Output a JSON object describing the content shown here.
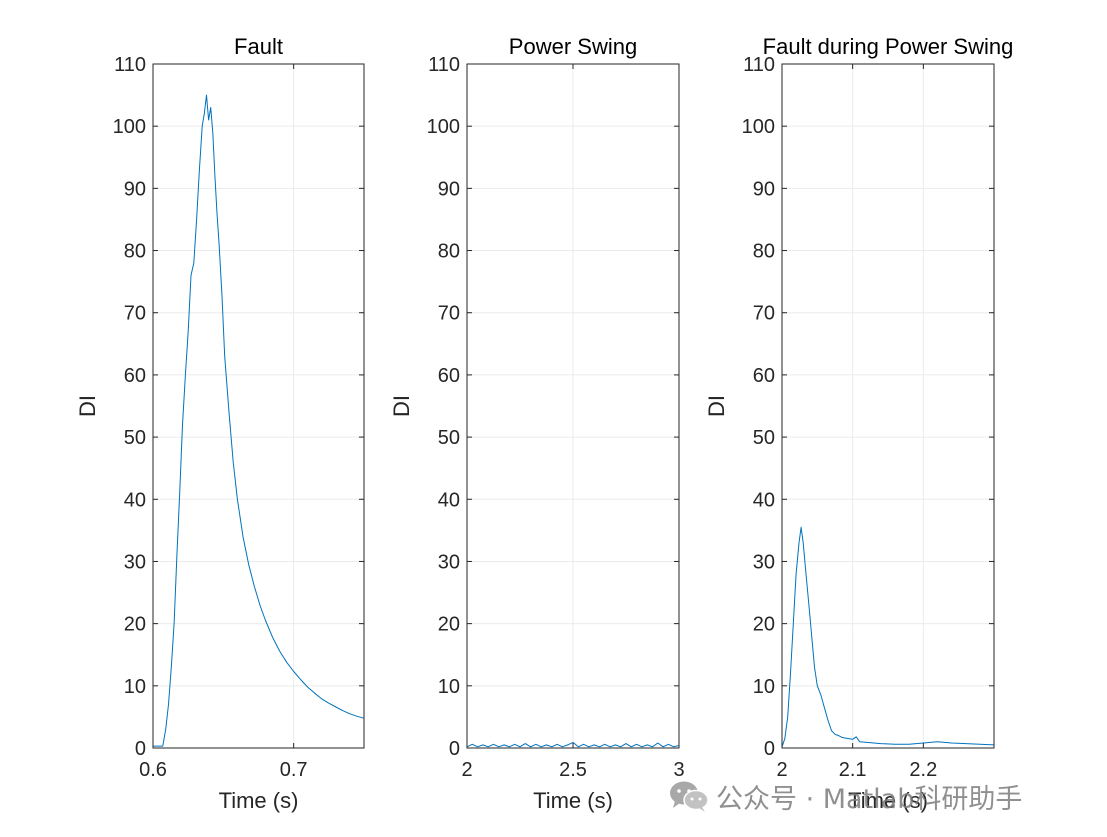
{
  "chart_data": [
    {
      "type": "line",
      "title": "Fault",
      "xlabel": "Time (s)",
      "ylabel": "DI",
      "xlim": [
        0.6,
        0.75
      ],
      "ylim": [
        0,
        110
      ],
      "xticks": [
        0.6,
        0.7
      ],
      "xticklabels": [
        "0.6",
        "0.7"
      ],
      "yticks": [
        0,
        10,
        20,
        30,
        40,
        50,
        60,
        70,
        80,
        90,
        100,
        110
      ],
      "yticklabels": [
        "0",
        "10",
        "20",
        "30",
        "40",
        "50",
        "60",
        "70",
        "80",
        "90",
        "100",
        "110"
      ],
      "grid": true,
      "line_color": "#0072BD",
      "series": [
        {
          "x": [
            0.6,
            0.607,
            0.609,
            0.611,
            0.613,
            0.615,
            0.617,
            0.619,
            0.621,
            0.623,
            0.625,
            0.627,
            0.629,
            0.631,
            0.633,
            0.635,
            0.6365,
            0.638,
            0.6395,
            0.641,
            0.6425,
            0.644,
            0.6455,
            0.647,
            0.649,
            0.651,
            0.654,
            0.657,
            0.66,
            0.664,
            0.668,
            0.672,
            0.676,
            0.68,
            0.685,
            0.69,
            0.695,
            0.7,
            0.705,
            0.71,
            0.715,
            0.72,
            0.725,
            0.73,
            0.735,
            0.74,
            0.745,
            0.75
          ],
          "y": [
            0.3,
            0.3,
            3,
            7,
            13,
            20,
            31,
            41,
            52,
            60,
            67,
            76,
            78,
            85,
            93,
            100,
            102,
            105,
            101,
            103,
            99,
            92,
            86,
            81,
            73,
            63,
            54,
            46,
            40,
            34,
            29.5,
            26,
            23,
            20.5,
            17.8,
            15.6,
            13.8,
            12.3,
            11,
            9.8,
            8.8,
            7.9,
            7.2,
            6.6,
            6,
            5.5,
            5.1,
            4.8
          ]
        }
      ]
    },
    {
      "type": "line",
      "title": "Power Swing",
      "xlabel": "Time (s)",
      "ylabel": "DI",
      "xlim": [
        2,
        3
      ],
      "ylim": [
        0,
        110
      ],
      "xticks": [
        2,
        2.5,
        3
      ],
      "xticklabels": [
        "2",
        "2.5",
        "3"
      ],
      "yticks": [
        0,
        10,
        20,
        30,
        40,
        50,
        60,
        70,
        80,
        90,
        100,
        110
      ],
      "yticklabels": [
        "0",
        "10",
        "20",
        "30",
        "40",
        "50",
        "60",
        "70",
        "80",
        "90",
        "100",
        "110"
      ],
      "grid": true,
      "line_color": "#0072BD",
      "series": [
        {
          "x": [
            2.0,
            2.025,
            2.05,
            2.075,
            2.1,
            2.125,
            2.15,
            2.175,
            2.2,
            2.225,
            2.25,
            2.275,
            2.3,
            2.325,
            2.35,
            2.375,
            2.4,
            2.425,
            2.45,
            2.475,
            2.5,
            2.525,
            2.55,
            2.575,
            2.6,
            2.625,
            2.65,
            2.675,
            2.7,
            2.725,
            2.75,
            2.775,
            2.8,
            2.825,
            2.85,
            2.875,
            2.9,
            2.925,
            2.95,
            2.975,
            3.0
          ],
          "y": [
            0.2,
            0.6,
            0.2,
            0.5,
            0.2,
            0.6,
            0.2,
            0.5,
            0.2,
            0.6,
            0.2,
            0.7,
            0.2,
            0.6,
            0.2,
            0.5,
            0.2,
            0.6,
            0.2,
            0.5,
            0.9,
            0.2,
            0.6,
            0.2,
            0.5,
            0.2,
            0.6,
            0.2,
            0.5,
            0.2,
            0.7,
            0.2,
            0.6,
            0.2,
            0.5,
            0.2,
            0.8,
            0.2,
            0.6,
            0.2,
            0.4
          ]
        }
      ]
    },
    {
      "type": "line",
      "title": "Fault during Power Swing",
      "xlabel": "Time (s)",
      "ylabel": "DI",
      "xlim": [
        2,
        2.3
      ],
      "ylim": [
        0,
        110
      ],
      "xticks": [
        2,
        2.1,
        2.2
      ],
      "xticklabels": [
        "2",
        "2.1",
        "2.2"
      ],
      "yticks": [
        0,
        10,
        20,
        30,
        40,
        50,
        60,
        70,
        80,
        90,
        100,
        110
      ],
      "yticklabels": [
        "0",
        "10",
        "20",
        "30",
        "40",
        "50",
        "60",
        "70",
        "80",
        "90",
        "100",
        "110"
      ],
      "grid": true,
      "line_color": "#0072BD",
      "series": [
        {
          "x": [
            2.0,
            2.004,
            2.008,
            2.012,
            2.016,
            2.02,
            2.024,
            2.027,
            2.03,
            2.034,
            2.038,
            2.042,
            2.046,
            2.05,
            2.055,
            2.06,
            2.065,
            2.07,
            2.075,
            2.08,
            2.085,
            2.09,
            2.1,
            2.105,
            2.11,
            2.12,
            2.14,
            2.16,
            2.18,
            2.2,
            2.22,
            2.24,
            2.26,
            2.28,
            2.3
          ],
          "y": [
            0.2,
            1.5,
            5,
            12,
            20,
            28,
            33,
            35.5,
            33,
            28,
            23,
            18,
            13,
            10,
            8.5,
            6.5,
            4.5,
            2.8,
            2.2,
            2.0,
            1.7,
            1.6,
            1.4,
            1.8,
            1.0,
            0.9,
            0.7,
            0.6,
            0.6,
            0.8,
            1.0,
            0.8,
            0.7,
            0.6,
            0.5
          ]
        }
      ]
    }
  ],
  "watermark": {
    "text": "公众号 · Matlab科研助手",
    "icon": "wechat-icon"
  }
}
